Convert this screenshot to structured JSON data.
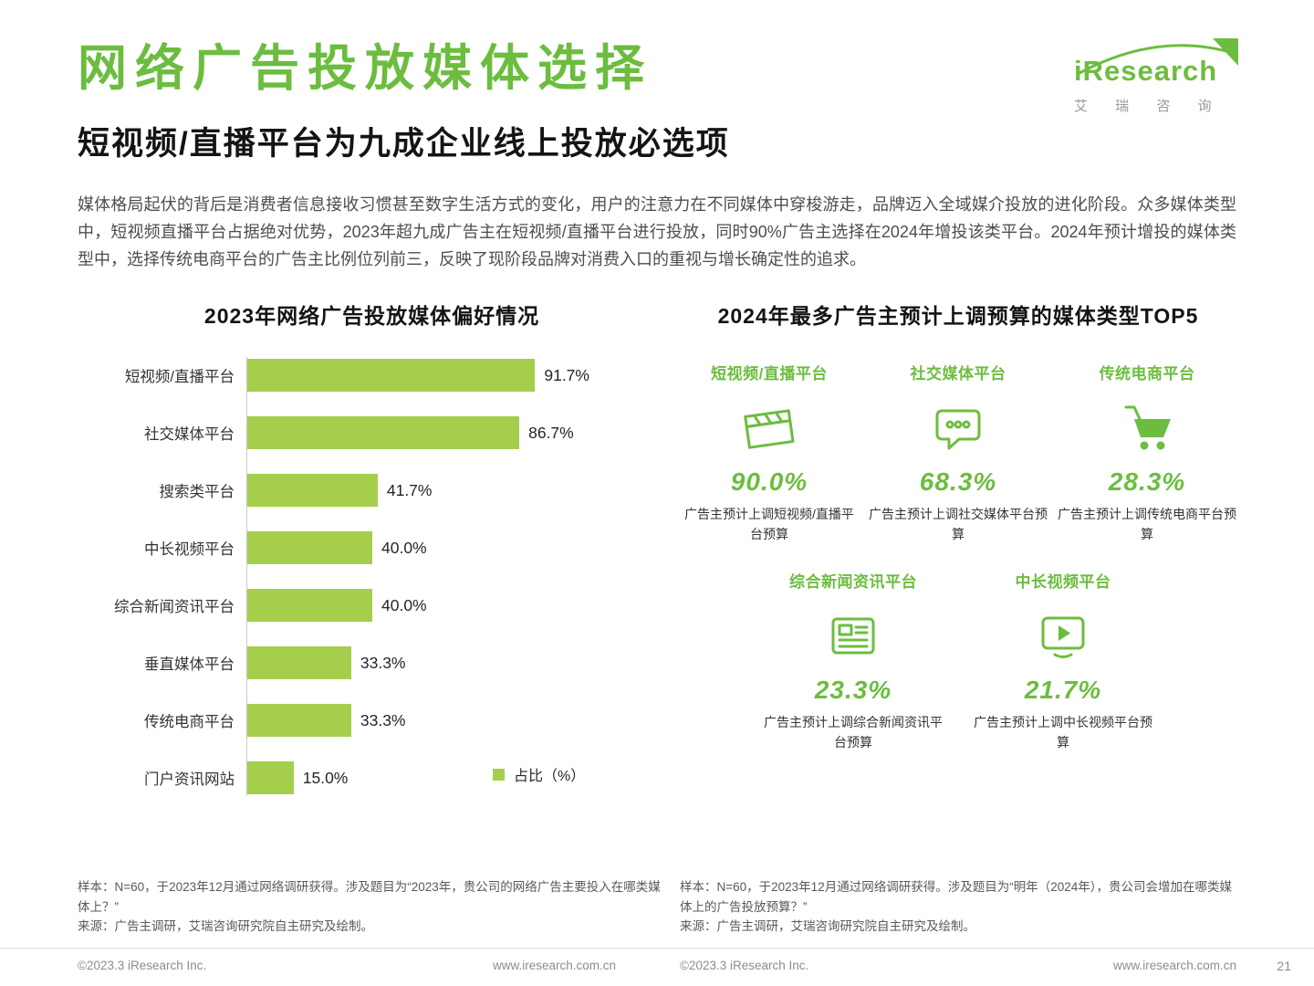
{
  "page": {
    "title": "网络广告投放媒体选择",
    "subtitle": "短视频/直播平台为九成企业线上投放必选项",
    "body": "媒体格局起伏的背后是消费者信息接收习惯甚至数字生活方式的变化，用户的注意力在不同媒体中穿梭游走，品牌迈入全域媒介投放的进化阶段。众多媒体类型中，短视频直播平台占据绝对优势，2023年超九成广告主在短视频/直播平台进行投放，同时90%广告主选择在2024年增投该类平台。2024年预计增投的媒体类型中，选择传统电商平台的广告主比例位列前三，反映了现阶段品牌对消费入口的重视与增长确定性的追求。",
    "page_number": "21"
  },
  "logo": {
    "brand": "iResearch",
    "brand_cn": "艾 瑞 咨 询"
  },
  "chart_data": {
    "type": "bar",
    "orientation": "horizontal",
    "title": "2023年网络广告投放媒体偏好情况",
    "categories": [
      "短视频/直播平台",
      "社交媒体平台",
      "搜索类平台",
      "中长视频平台",
      "综合新闻资讯平台",
      "垂直媒体平台",
      "传统电商平台",
      "门户资讯网站"
    ],
    "values": [
      91.7,
      86.7,
      41.7,
      40.0,
      40.0,
      33.3,
      33.3,
      15.0
    ],
    "value_labels": [
      "91.7%",
      "86.7%",
      "41.7%",
      "40.0%",
      "40.0%",
      "33.3%",
      "33.3%",
      "15.0%"
    ],
    "xlim": [
      0,
      100
    ],
    "grid": false,
    "legend": "占比（%）",
    "legend_position": "bottom-right",
    "bar_color": "#a6ce4d"
  },
  "top5": {
    "title": "2024年最多广告主预计上调预算的媒体类型TOP5",
    "items": [
      {
        "label": "短视频/直播平台",
        "icon": "clapperboard-icon",
        "value": 90.0,
        "value_label": "90.0%",
        "desc": "广告主预计上调短视频/直播平台预算"
      },
      {
        "label": "社交媒体平台",
        "icon": "chat-bubble-icon",
        "value": 68.3,
        "value_label": "68.3%",
        "desc": "广告主预计上调社交媒体平台预算"
      },
      {
        "label": "传统电商平台",
        "icon": "shopping-cart-icon",
        "value": 28.3,
        "value_label": "28.3%",
        "desc": "广告主预计上调传统电商平台预算"
      },
      {
        "label": "综合新闻资讯平台",
        "icon": "newspaper-icon",
        "value": 23.3,
        "value_label": "23.3%",
        "desc": "广告主预计上调综合新闻资讯平台预算"
      },
      {
        "label": "中长视频平台",
        "icon": "video-player-icon",
        "value": 21.7,
        "value_label": "21.7%",
        "desc": "广告主预计上调中长视频平台预算"
      }
    ]
  },
  "notes": {
    "left_sample": "样本：N=60，于2023年12月通过网络调研获得。涉及题目为“2023年，贵公司的网络广告主要投入在哪类媒体上？”",
    "left_source": "来源：广告主调研，艾瑞咨询研究院自主研究及绘制。",
    "right_sample": "样本：N=60，于2023年12月通过网络调研获得。涉及题目为“明年（2024年），贵公司会增加在哪类媒体上的广告投放预算？”",
    "right_source": "来源：广告主调研，艾瑞咨询研究院自主研究及绘制。"
  },
  "footer": {
    "copyright": "©2023.3 iResearch Inc.",
    "url": "www.iresearch.com.cn"
  },
  "colors": {
    "accent_green": "#6cbd3f",
    "bar_green": "#a6ce4d"
  }
}
